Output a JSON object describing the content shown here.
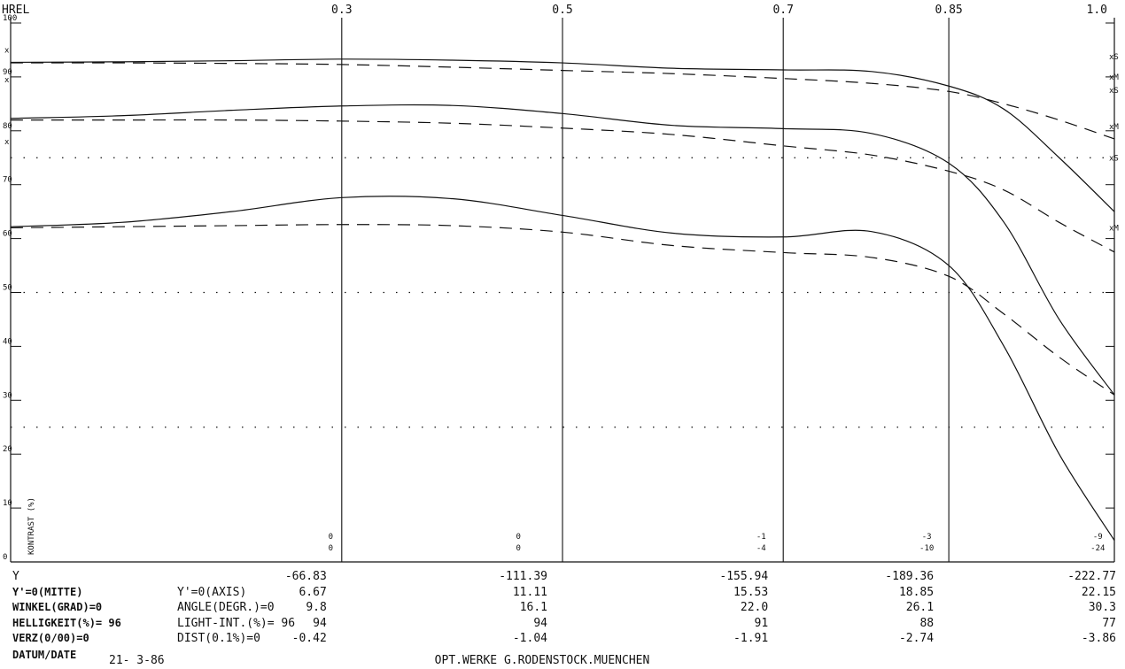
{
  "chart_data": {
    "type": "line",
    "title": "",
    "x_label": "HREL",
    "y_label": "KONTRAST (%)",
    "x_ticks": [
      {
        "x": 0.3,
        "label": "0.3"
      },
      {
        "x": 0.5,
        "label": "0.5"
      },
      {
        "x": 0.7,
        "label": "0.7"
      },
      {
        "x": 0.85,
        "label": "0.85"
      },
      {
        "x": 1.0,
        "label": "1.0"
      }
    ],
    "xlim": [
      0,
      1.0
    ],
    "y_ticks": [
      "0",
      "10",
      "20",
      "30",
      "40",
      "50",
      "60",
      "70",
      "80",
      "90",
      "100"
    ],
    "ylim": [
      0,
      100
    ],
    "grid": {
      "dotted_y": [
        25,
        50,
        75
      ]
    },
    "series": [
      {
        "style": "solid",
        "points": [
          [
            0,
            92.7
          ],
          [
            0.1,
            92.8
          ],
          [
            0.2,
            93.0
          ],
          [
            0.3,
            93.3
          ],
          [
            0.4,
            93.1
          ],
          [
            0.5,
            92.6
          ],
          [
            0.6,
            91.6
          ],
          [
            0.7,
            91.3
          ],
          [
            0.78,
            91.0
          ],
          [
            0.85,
            88.3
          ],
          [
            0.9,
            84.0
          ],
          [
            0.95,
            75.0
          ],
          [
            1.0,
            65.0
          ]
        ]
      },
      {
        "style": "dashed",
        "points": [
          [
            0,
            92.6
          ],
          [
            0.1,
            92.6
          ],
          [
            0.2,
            92.5
          ],
          [
            0.3,
            92.3
          ],
          [
            0.4,
            91.8
          ],
          [
            0.5,
            91.2
          ],
          [
            0.6,
            90.6
          ],
          [
            0.7,
            89.7
          ],
          [
            0.78,
            88.8
          ],
          [
            0.85,
            87.3
          ],
          [
            0.9,
            85.0
          ],
          [
            0.95,
            82.0
          ],
          [
            1.0,
            78.5
          ]
        ]
      },
      {
        "style": "solid",
        "points": [
          [
            0,
            82.3
          ],
          [
            0.1,
            82.8
          ],
          [
            0.2,
            83.8
          ],
          [
            0.3,
            84.6
          ],
          [
            0.4,
            84.7
          ],
          [
            0.5,
            83.2
          ],
          [
            0.6,
            81.0
          ],
          [
            0.7,
            80.4
          ],
          [
            0.78,
            79.5
          ],
          [
            0.85,
            74.0
          ],
          [
            0.9,
            63.0
          ],
          [
            0.95,
            45.0
          ],
          [
            1.0,
            31.0
          ]
        ]
      },
      {
        "style": "dashed",
        "points": [
          [
            0,
            82.0
          ],
          [
            0.1,
            82.0
          ],
          [
            0.2,
            82.0
          ],
          [
            0.3,
            81.8
          ],
          [
            0.4,
            81.4
          ],
          [
            0.5,
            80.5
          ],
          [
            0.6,
            79.3
          ],
          [
            0.7,
            77.2
          ],
          [
            0.78,
            75.5
          ],
          [
            0.85,
            72.5
          ],
          [
            0.9,
            69.0
          ],
          [
            0.95,
            63.0
          ],
          [
            1.0,
            57.5
          ]
        ]
      },
      {
        "style": "solid",
        "points": [
          [
            0,
            62.2
          ],
          [
            0.1,
            63.0
          ],
          [
            0.2,
            65.0
          ],
          [
            0.3,
            67.6
          ],
          [
            0.4,
            67.4
          ],
          [
            0.5,
            64.3
          ],
          [
            0.6,
            61.0
          ],
          [
            0.7,
            60.3
          ],
          [
            0.78,
            61.3
          ],
          [
            0.85,
            55.0
          ],
          [
            0.9,
            40.0
          ],
          [
            0.95,
            20.0
          ],
          [
            1.0,
            4.0
          ]
        ]
      },
      {
        "style": "dashed",
        "points": [
          [
            0,
            62.0
          ],
          [
            0.1,
            62.2
          ],
          [
            0.2,
            62.4
          ],
          [
            0.3,
            62.6
          ],
          [
            0.4,
            62.4
          ],
          [
            0.5,
            61.2
          ],
          [
            0.6,
            58.7
          ],
          [
            0.7,
            57.4
          ],
          [
            0.78,
            56.5
          ],
          [
            0.85,
            53.0
          ],
          [
            0.9,
            46.0
          ],
          [
            0.95,
            38.0
          ],
          [
            1.0,
            31.0
          ]
        ]
      }
    ],
    "left_markers": [
      {
        "y": 95.0,
        "label": "x"
      },
      {
        "y": 89.5,
        "label": "x"
      },
      {
        "y": 78.0,
        "label": "x"
      }
    ],
    "right_markers": [
      {
        "y": 93.8,
        "label": "xS"
      },
      {
        "y": 90.0,
        "label": "xM"
      },
      {
        "y": 87.5,
        "label": "xS"
      },
      {
        "y": 80.8,
        "label": "xM"
      },
      {
        "y": 75.0,
        "label": "xS"
      },
      {
        "y": 62.0,
        "label": "xM"
      }
    ],
    "bottom_annotations": [
      {
        "x": 0.29,
        "top": "0",
        "bottom": "0"
      },
      {
        "x": 0.46,
        "top": "0",
        "bottom": "0"
      },
      {
        "x": 0.68,
        "top": "-1",
        "bottom": "-4"
      },
      {
        "x": 0.83,
        "top": "-3",
        "bottom": "-10"
      },
      {
        "x": 0.985,
        "top": "-9",
        "bottom": "-24"
      }
    ]
  },
  "table": {
    "row_labels_left": [
      "Y",
      "Y'=0(MITTE)",
      "WINKEL(GRAD)=0",
      "HELLIGKEIT(%)= 96",
      "VERZ(0/00)=0"
    ],
    "row_labels_right": [
      "",
      "Y'=0(AXIS)",
      "ANGLE(DEGR.)=0",
      "LIGHT-INT.(%)= 96",
      "DIST(0.1%)=0"
    ],
    "columns": [
      {
        "x": 0.3,
        "values": [
          "-66.83",
          "6.67",
          "9.8",
          "94",
          "-0.42"
        ]
      },
      {
        "x": 0.5,
        "values": [
          "-111.39",
          "11.11",
          "16.1",
          "94",
          "-1.04"
        ]
      },
      {
        "x": 0.7,
        "values": [
          "-155.94",
          "15.53",
          "22.0",
          "91",
          "-1.91"
        ]
      },
      {
        "x": 0.85,
        "values": [
          "-189.36",
          "18.85",
          "26.1",
          "88",
          "-2.74"
        ]
      },
      {
        "x": 1.0,
        "values": [
          "-222.77",
          "22.15",
          "30.3",
          "77",
          "-3.86"
        ]
      }
    ]
  },
  "footer": {
    "date_label": "DATUM/DATE",
    "date_value": "21- 3-86",
    "maker": "OPT.WERKE G.RODENSTOCK.MUENCHEN"
  }
}
